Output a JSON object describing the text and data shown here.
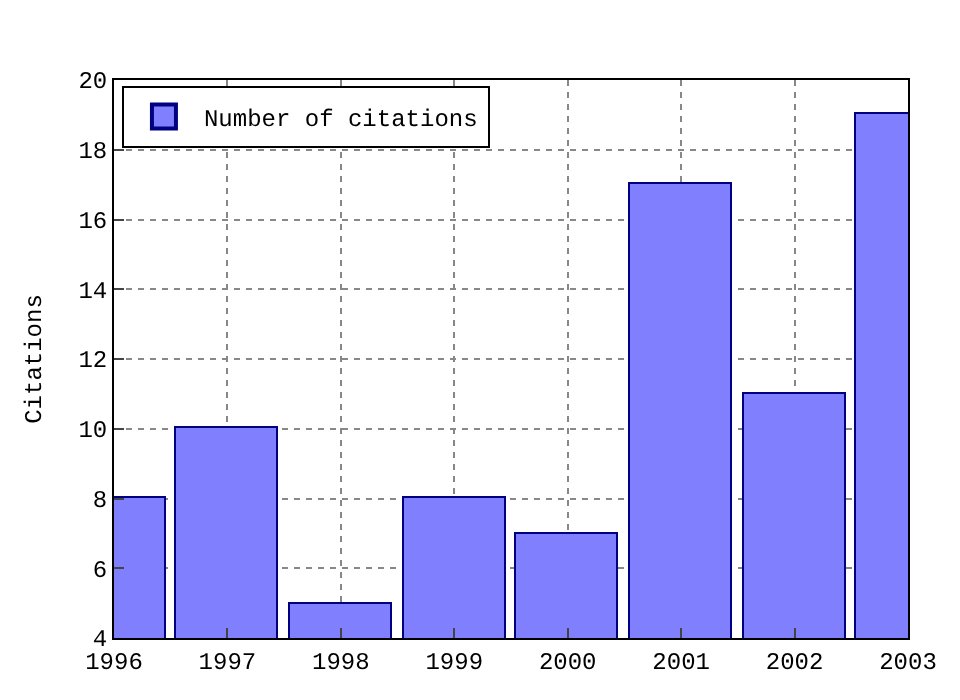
{
  "chart_data": {
    "type": "bar",
    "ylabel": "Citations",
    "x": [
      1996,
      1997,
      1998,
      1999,
      2000,
      2001,
      2002,
      2003
    ],
    "series": [
      {
        "name": "Number of citations",
        "color": "#8080ff",
        "values": [
          8,
          10,
          5,
          8,
          7,
          17,
          11,
          19
        ]
      }
    ],
    "xlim": [
      1996,
      2003
    ],
    "xticks": [
      1996,
      1997,
      1998,
      1999,
      2000,
      2001,
      2002,
      2003
    ],
    "ylim": [
      4,
      20
    ],
    "yticks": [
      4,
      6,
      8,
      10,
      12,
      14,
      16,
      18,
      20
    ],
    "grid": true,
    "legend": "top left"
  }
}
